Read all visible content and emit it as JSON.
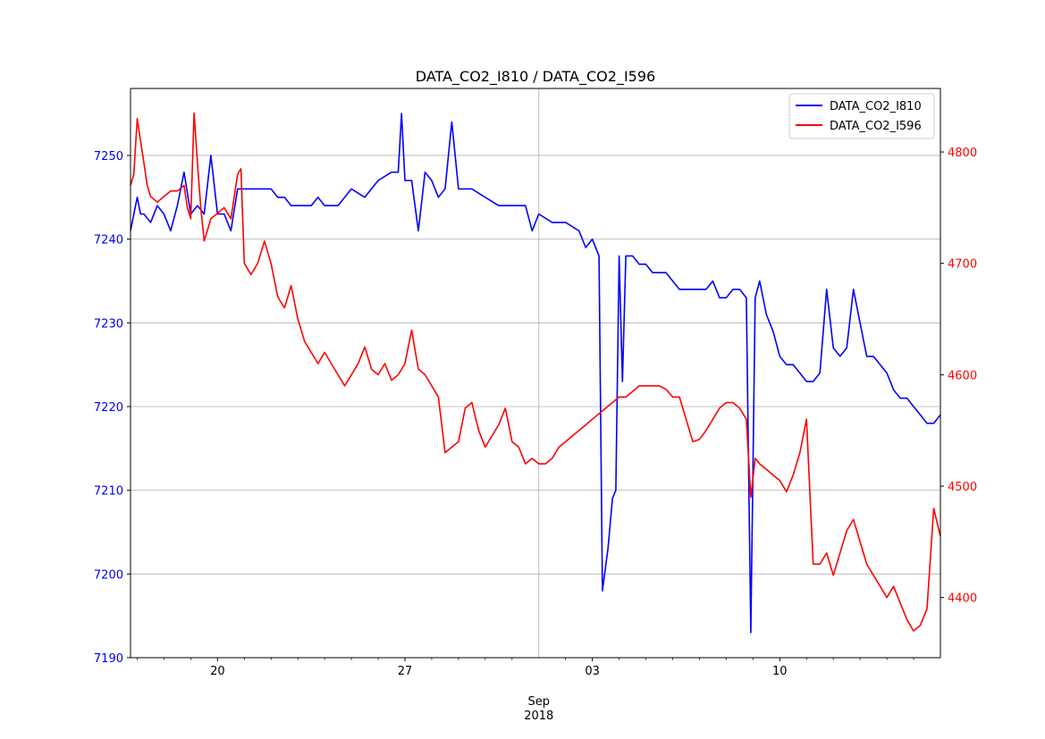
{
  "chart_data": {
    "type": "line",
    "title": "DATA_CO2_I810 / DATA_CO2_I596",
    "x_tick_labels": [
      "20",
      "27",
      "03",
      "10"
    ],
    "x_major_label": "Sep",
    "x_year_label": "2018",
    "x_range": [
      "2018-08-16T18:00",
      "2018-09-16T00:00"
    ],
    "x_ticks": [
      "2018-08-20",
      "2018-08-27",
      "2018-09-03",
      "2018-09-10"
    ],
    "x_minor_ticks": [
      "2018-08-17",
      "2018-08-18",
      "2018-08-19",
      "2018-08-21",
      "2018-08-22",
      "2018-08-23",
      "2018-08-24",
      "2018-08-25",
      "2018-08-26",
      "2018-08-28",
      "2018-08-29",
      "2018-08-30",
      "2018-08-31",
      "2018-09-02",
      "2018-09-04",
      "2018-09-05",
      "2018-09-06",
      "2018-09-07",
      "2018-09-08",
      "2018-09-09",
      "2018-09-11",
      "2018-09-12",
      "2018-09-13",
      "2018-09-14",
      "2018-09-15"
    ],
    "x_grid_dates": [
      "2018-09-01"
    ],
    "left_axis": {
      "range": [
        7190,
        7258
      ],
      "ticks": [
        7190,
        7200,
        7210,
        7220,
        7230,
        7240,
        7250
      ],
      "color": "#0000ff"
    },
    "right_axis": {
      "range": [
        4346,
        4857
      ],
      "ticks": [
        4400,
        4500,
        4600,
        4700,
        4800
      ],
      "color": "#ff0000"
    },
    "legend_position": "top-right",
    "grid": true,
    "series": [
      {
        "name": "DATA_CO2_I810",
        "axis": "left",
        "color": "#0000ff",
        "points": [
          [
            "2018-08-16T18:00",
            7241
          ],
          [
            "2018-08-17T00:00",
            7245
          ],
          [
            "2018-08-17T03:00",
            7243
          ],
          [
            "2018-08-17T06:00",
            7243
          ],
          [
            "2018-08-17T12:00",
            7242
          ],
          [
            "2018-08-17T18:00",
            7244
          ],
          [
            "2018-08-18T00:00",
            7243
          ],
          [
            "2018-08-18T06:00",
            7241
          ],
          [
            "2018-08-18T12:00",
            7244
          ],
          [
            "2018-08-18T18:00",
            7248
          ],
          [
            "2018-08-19T00:00",
            7243
          ],
          [
            "2018-08-19T06:00",
            7244
          ],
          [
            "2018-08-19T12:00",
            7243
          ],
          [
            "2018-08-19T18:00",
            7250
          ],
          [
            "2018-08-20T00:00",
            7243
          ],
          [
            "2018-08-20T06:00",
            7243
          ],
          [
            "2018-08-20T12:00",
            7241
          ],
          [
            "2018-08-20T18:00",
            7246
          ],
          [
            "2018-08-21T00:00",
            7246
          ],
          [
            "2018-08-21T12:00",
            7246
          ],
          [
            "2018-08-22T00:00",
            7246
          ],
          [
            "2018-08-22T06:00",
            7245
          ],
          [
            "2018-08-22T12:00",
            7245
          ],
          [
            "2018-08-22T18:00",
            7244
          ],
          [
            "2018-08-23T00:00",
            7244
          ],
          [
            "2018-08-23T12:00",
            7244
          ],
          [
            "2018-08-23T18:00",
            7245
          ],
          [
            "2018-08-24T00:00",
            7244
          ],
          [
            "2018-08-24T12:00",
            7244
          ],
          [
            "2018-08-24T18:00",
            7245
          ],
          [
            "2018-08-25T00:00",
            7246
          ],
          [
            "2018-08-25T12:00",
            7245
          ],
          [
            "2018-08-26T00:00",
            7247
          ],
          [
            "2018-08-26T12:00",
            7248
          ],
          [
            "2018-08-26T18:00",
            7248
          ],
          [
            "2018-08-26T21:00",
            7255
          ],
          [
            "2018-08-27T00:00",
            7247
          ],
          [
            "2018-08-27T06:00",
            7247
          ],
          [
            "2018-08-27T12:00",
            7241
          ],
          [
            "2018-08-27T18:00",
            7248
          ],
          [
            "2018-08-28T00:00",
            7247
          ],
          [
            "2018-08-28T06:00",
            7245
          ],
          [
            "2018-08-28T12:00",
            7246
          ],
          [
            "2018-08-28T18:00",
            7254
          ],
          [
            "2018-08-29T00:00",
            7246
          ],
          [
            "2018-08-29T12:00",
            7246
          ],
          [
            "2018-08-30T00:00",
            7245
          ],
          [
            "2018-08-30T12:00",
            7244
          ],
          [
            "2018-08-31T00:00",
            7244
          ],
          [
            "2018-08-31T12:00",
            7244
          ],
          [
            "2018-08-31T18:00",
            7241
          ],
          [
            "2018-09-01T00:00",
            7243
          ],
          [
            "2018-09-01T12:00",
            7242
          ],
          [
            "2018-09-02T00:00",
            7242
          ],
          [
            "2018-09-02T12:00",
            7241
          ],
          [
            "2018-09-02T18:00",
            7239
          ],
          [
            "2018-09-03T00:00",
            7240
          ],
          [
            "2018-09-03T06:00",
            7238
          ],
          [
            "2018-09-03T09:00",
            7198
          ],
          [
            "2018-09-03T14:00",
            7203
          ],
          [
            "2018-09-03T18:00",
            7209
          ],
          [
            "2018-09-03T21:00",
            7210
          ],
          [
            "2018-09-04T00:00",
            7238
          ],
          [
            "2018-09-04T03:00",
            7223
          ],
          [
            "2018-09-04T06:00",
            7238
          ],
          [
            "2018-09-04T12:00",
            7238
          ],
          [
            "2018-09-04T18:00",
            7237
          ],
          [
            "2018-09-05T00:00",
            7237
          ],
          [
            "2018-09-05T06:00",
            7236
          ],
          [
            "2018-09-05T12:00",
            7236
          ],
          [
            "2018-09-05T18:00",
            7236
          ],
          [
            "2018-09-06T00:00",
            7235
          ],
          [
            "2018-09-06T06:00",
            7234
          ],
          [
            "2018-09-06T12:00",
            7234
          ],
          [
            "2018-09-06T18:00",
            7234
          ],
          [
            "2018-09-07T00:00",
            7234
          ],
          [
            "2018-09-07T06:00",
            7234
          ],
          [
            "2018-09-07T12:00",
            7235
          ],
          [
            "2018-09-07T18:00",
            7233
          ],
          [
            "2018-09-08T00:00",
            7233
          ],
          [
            "2018-09-08T06:00",
            7234
          ],
          [
            "2018-09-08T12:00",
            7234
          ],
          [
            "2018-09-08T18:00",
            7233
          ],
          [
            "2018-09-08T22:00",
            7193
          ],
          [
            "2018-09-09T02:00",
            7233
          ],
          [
            "2018-09-09T06:00",
            7235
          ],
          [
            "2018-09-09T12:00",
            7231
          ],
          [
            "2018-09-09T18:00",
            7229
          ],
          [
            "2018-09-10T00:00",
            7226
          ],
          [
            "2018-09-10T06:00",
            7225
          ],
          [
            "2018-09-10T12:00",
            7225
          ],
          [
            "2018-09-10T18:00",
            7224
          ],
          [
            "2018-09-11T00:00",
            7223
          ],
          [
            "2018-09-11T06:00",
            7223
          ],
          [
            "2018-09-11T12:00",
            7224
          ],
          [
            "2018-09-11T18:00",
            7234
          ],
          [
            "2018-09-12T00:00",
            7227
          ],
          [
            "2018-09-12T06:00",
            7226
          ],
          [
            "2018-09-12T12:00",
            7227
          ],
          [
            "2018-09-12T18:00",
            7234
          ],
          [
            "2018-09-13T00:00",
            7230
          ],
          [
            "2018-09-13T06:00",
            7226
          ],
          [
            "2018-09-13T12:00",
            7226
          ],
          [
            "2018-09-13T18:00",
            7225
          ],
          [
            "2018-09-14T00:00",
            7224
          ],
          [
            "2018-09-14T06:00",
            7222
          ],
          [
            "2018-09-14T12:00",
            7221
          ],
          [
            "2018-09-14T18:00",
            7221
          ],
          [
            "2018-09-15T00:00",
            7220
          ],
          [
            "2018-09-15T06:00",
            7219
          ],
          [
            "2018-09-15T12:00",
            7218
          ],
          [
            "2018-09-15T18:00",
            7218
          ],
          [
            "2018-09-16T00:00",
            7219
          ]
        ]
      },
      {
        "name": "DATA_CO2_I596",
        "axis": "right",
        "color": "#ff0000",
        "points": [
          [
            "2018-08-16T18:00",
            4770
          ],
          [
            "2018-08-16T21:00",
            4780
          ],
          [
            "2018-08-17T00:00",
            4830
          ],
          [
            "2018-08-17T03:00",
            4810
          ],
          [
            "2018-08-17T06:00",
            4790
          ],
          [
            "2018-08-17T09:00",
            4770
          ],
          [
            "2018-08-17T12:00",
            4760
          ],
          [
            "2018-08-17T18:00",
            4755
          ],
          [
            "2018-08-18T00:00",
            4760
          ],
          [
            "2018-08-18T06:00",
            4765
          ],
          [
            "2018-08-18T12:00",
            4765
          ],
          [
            "2018-08-18T18:00",
            4770
          ],
          [
            "2018-08-18T21:00",
            4750
          ],
          [
            "2018-08-19T00:00",
            4740
          ],
          [
            "2018-08-19T03:00",
            4835
          ],
          [
            "2018-08-19T06:00",
            4790
          ],
          [
            "2018-08-19T09:00",
            4750
          ],
          [
            "2018-08-19T12:00",
            4720
          ],
          [
            "2018-08-19T18:00",
            4740
          ],
          [
            "2018-08-20T00:00",
            4745
          ],
          [
            "2018-08-20T06:00",
            4750
          ],
          [
            "2018-08-20T12:00",
            4740
          ],
          [
            "2018-08-20T18:00",
            4780
          ],
          [
            "2018-08-20T21:00",
            4785
          ],
          [
            "2018-08-21T00:00",
            4700
          ],
          [
            "2018-08-21T06:00",
            4690
          ],
          [
            "2018-08-21T12:00",
            4700
          ],
          [
            "2018-08-21T18:00",
            4720
          ],
          [
            "2018-08-22T00:00",
            4700
          ],
          [
            "2018-08-22T06:00",
            4670
          ],
          [
            "2018-08-22T12:00",
            4660
          ],
          [
            "2018-08-22T18:00",
            4680
          ],
          [
            "2018-08-23T00:00",
            4650
          ],
          [
            "2018-08-23T06:00",
            4630
          ],
          [
            "2018-08-23T12:00",
            4620
          ],
          [
            "2018-08-23T18:00",
            4610
          ],
          [
            "2018-08-24T00:00",
            4620
          ],
          [
            "2018-08-24T06:00",
            4610
          ],
          [
            "2018-08-24T12:00",
            4600
          ],
          [
            "2018-08-24T18:00",
            4590
          ],
          [
            "2018-08-25T00:00",
            4600
          ],
          [
            "2018-08-25T06:00",
            4610
          ],
          [
            "2018-08-25T12:00",
            4625
          ],
          [
            "2018-08-25T18:00",
            4605
          ],
          [
            "2018-08-26T00:00",
            4600
          ],
          [
            "2018-08-26T06:00",
            4610
          ],
          [
            "2018-08-26T12:00",
            4595
          ],
          [
            "2018-08-26T18:00",
            4600
          ],
          [
            "2018-08-27T00:00",
            4610
          ],
          [
            "2018-08-27T06:00",
            4640
          ],
          [
            "2018-08-27T12:00",
            4605
          ],
          [
            "2018-08-27T18:00",
            4600
          ],
          [
            "2018-08-28T00:00",
            4590
          ],
          [
            "2018-08-28T06:00",
            4580
          ],
          [
            "2018-08-28T12:00",
            4530
          ],
          [
            "2018-08-28T18:00",
            4535
          ],
          [
            "2018-08-29T00:00",
            4540
          ],
          [
            "2018-08-29T06:00",
            4570
          ],
          [
            "2018-08-29T12:00",
            4575
          ],
          [
            "2018-08-29T18:00",
            4550
          ],
          [
            "2018-08-30T00:00",
            4535
          ],
          [
            "2018-08-30T06:00",
            4545
          ],
          [
            "2018-08-30T12:00",
            4555
          ],
          [
            "2018-08-30T18:00",
            4570
          ],
          [
            "2018-08-31T00:00",
            4540
          ],
          [
            "2018-08-31T06:00",
            4535
          ],
          [
            "2018-08-31T12:00",
            4520
          ],
          [
            "2018-08-31T18:00",
            4525
          ],
          [
            "2018-09-01T00:00",
            4520
          ],
          [
            "2018-09-01T06:00",
            4520
          ],
          [
            "2018-09-01T12:00",
            4525
          ],
          [
            "2018-09-01T18:00",
            4535
          ],
          [
            "2018-09-02T00:00",
            4540
          ],
          [
            "2018-09-02T06:00",
            4545
          ],
          [
            "2018-09-02T12:00",
            4550
          ],
          [
            "2018-09-02T18:00",
            4555
          ],
          [
            "2018-09-03T00:00",
            4560
          ],
          [
            "2018-09-03T06:00",
            4565
          ],
          [
            "2018-09-03T12:00",
            4570
          ],
          [
            "2018-09-03T18:00",
            4575
          ],
          [
            "2018-09-04T00:00",
            4580
          ],
          [
            "2018-09-04T06:00",
            4580
          ],
          [
            "2018-09-04T12:00",
            4585
          ],
          [
            "2018-09-04T18:00",
            4590
          ],
          [
            "2018-09-05T00:00",
            4590
          ],
          [
            "2018-09-05T06:00",
            4590
          ],
          [
            "2018-09-05T12:00",
            4590
          ],
          [
            "2018-09-05T18:00",
            4587
          ],
          [
            "2018-09-06T00:00",
            4580
          ],
          [
            "2018-09-06T06:00",
            4580
          ],
          [
            "2018-09-06T12:00",
            4560
          ],
          [
            "2018-09-06T18:00",
            4540
          ],
          [
            "2018-09-07T00:00",
            4542
          ],
          [
            "2018-09-07T06:00",
            4550
          ],
          [
            "2018-09-07T12:00",
            4560
          ],
          [
            "2018-09-07T18:00",
            4570
          ],
          [
            "2018-09-08T00:00",
            4575
          ],
          [
            "2018-09-08T06:00",
            4575
          ],
          [
            "2018-09-08T12:00",
            4570
          ],
          [
            "2018-09-08T18:00",
            4560
          ],
          [
            "2018-09-08T22:00",
            4490
          ],
          [
            "2018-09-09T02:00",
            4525
          ],
          [
            "2018-09-09T06:00",
            4520
          ],
          [
            "2018-09-09T12:00",
            4515
          ],
          [
            "2018-09-09T18:00",
            4510
          ],
          [
            "2018-09-10T00:00",
            4505
          ],
          [
            "2018-09-10T06:00",
            4495
          ],
          [
            "2018-09-10T12:00",
            4510
          ],
          [
            "2018-09-10T18:00",
            4530
          ],
          [
            "2018-09-11T00:00",
            4560
          ],
          [
            "2018-09-11T06:00",
            4430
          ],
          [
            "2018-09-11T12:00",
            4430
          ],
          [
            "2018-09-11T18:00",
            4440
          ],
          [
            "2018-09-12T00:00",
            4420
          ],
          [
            "2018-09-12T06:00",
            4440
          ],
          [
            "2018-09-12T12:00",
            4460
          ],
          [
            "2018-09-12T18:00",
            4470
          ],
          [
            "2018-09-13T00:00",
            4450
          ],
          [
            "2018-09-13T06:00",
            4430
          ],
          [
            "2018-09-13T12:00",
            4420
          ],
          [
            "2018-09-13T18:00",
            4410
          ],
          [
            "2018-09-14T00:00",
            4400
          ],
          [
            "2018-09-14T06:00",
            4410
          ],
          [
            "2018-09-14T12:00",
            4395
          ],
          [
            "2018-09-14T18:00",
            4380
          ],
          [
            "2018-09-15T00:00",
            4370
          ],
          [
            "2018-09-15T06:00",
            4375
          ],
          [
            "2018-09-15T12:00",
            4390
          ],
          [
            "2018-09-15T18:00",
            4480
          ],
          [
            "2018-09-16T00:00",
            4455
          ]
        ]
      }
    ]
  }
}
